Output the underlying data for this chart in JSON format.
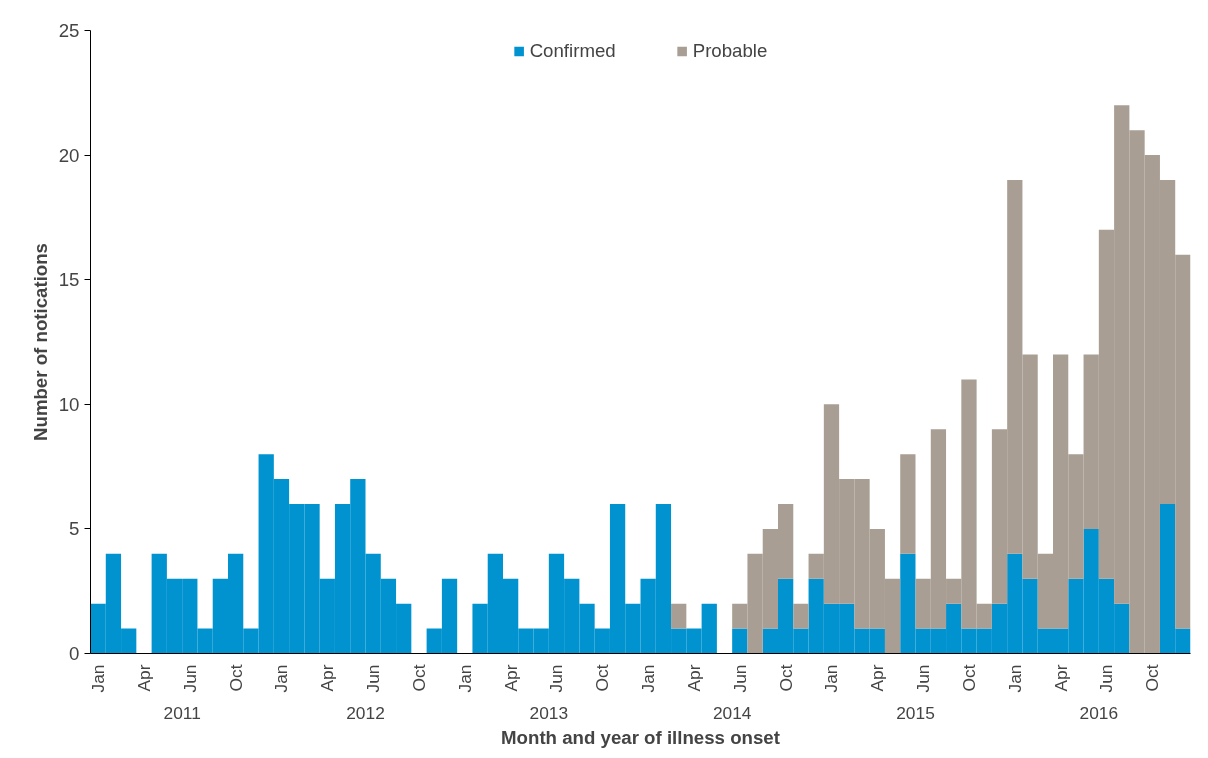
{
  "chart_data": {
    "type": "bar",
    "stacked": true,
    "xlabel": "Month and year of illness onset",
    "ylabel": "Number of notications",
    "categories": [
      "Jan",
      null,
      null,
      "Apr",
      null,
      null,
      "Jun",
      null,
      null,
      "Oct",
      null,
      null,
      "Jan",
      null,
      null,
      "Apr",
      null,
      null,
      "Jun",
      null,
      null,
      "Oct",
      null,
      null,
      "Jan",
      null,
      null,
      "Apr",
      null,
      null,
      "Jun",
      null,
      null,
      "Oct",
      null,
      null,
      "Jan",
      null,
      null,
      "Apr",
      null,
      null,
      "Jun",
      null,
      null,
      "Oct",
      null,
      null,
      "Jan",
      null,
      null,
      "Apr",
      null,
      null,
      "Jun",
      null,
      null,
      "Oct",
      null,
      null,
      "Jan",
      null,
      null,
      "Apr",
      null,
      null,
      "Jun",
      null,
      null,
      "Oct",
      null,
      null
    ],
    "annotations": [
      "2011",
      "2012",
      "2013",
      "2014",
      "2015",
      "2016"
    ],
    "series": [
      {
        "name": "Confirmed",
        "color": "#0093d0",
        "values": [
          2,
          4,
          1,
          0,
          4,
          3,
          3,
          1,
          3,
          4,
          1,
          8,
          7,
          6,
          6,
          3,
          6,
          7,
          4,
          3,
          2,
          0,
          1,
          3,
          0,
          2,
          4,
          3,
          1,
          1,
          4,
          3,
          2,
          1,
          6,
          2,
          3,
          6,
          1,
          1,
          2,
          0,
          1,
          0,
          1,
          3,
          1,
          3,
          2,
          2,
          1,
          1,
          0,
          4,
          1,
          1,
          2,
          1,
          1,
          2,
          4,
          3,
          1,
          1,
          3,
          5,
          3,
          2,
          0,
          0,
          6,
          1
        ]
      },
      {
        "name": "Probable",
        "color": "#a99e93",
        "values": [
          0,
          0,
          0,
          0,
          0,
          0,
          0,
          0,
          0,
          0,
          0,
          0,
          0,
          0,
          0,
          0,
          0,
          0,
          0,
          0,
          0,
          0,
          0,
          0,
          0,
          0,
          0,
          0,
          0,
          0,
          0,
          0,
          0,
          0,
          0,
          0,
          0,
          0,
          1,
          0,
          0,
          0,
          1,
          4,
          4,
          3,
          1,
          1,
          8,
          5,
          6,
          4,
          3,
          4,
          2,
          8,
          1,
          10,
          1,
          7,
          15,
          9,
          3,
          11,
          5,
          7,
          14,
          20,
          21,
          20,
          13,
          15
        ]
      }
    ],
    "ylim": [
      0,
      25
    ],
    "yticks": [
      0,
      5,
      10,
      15,
      20,
      25
    ],
    "grid": false,
    "legend": "top"
  }
}
